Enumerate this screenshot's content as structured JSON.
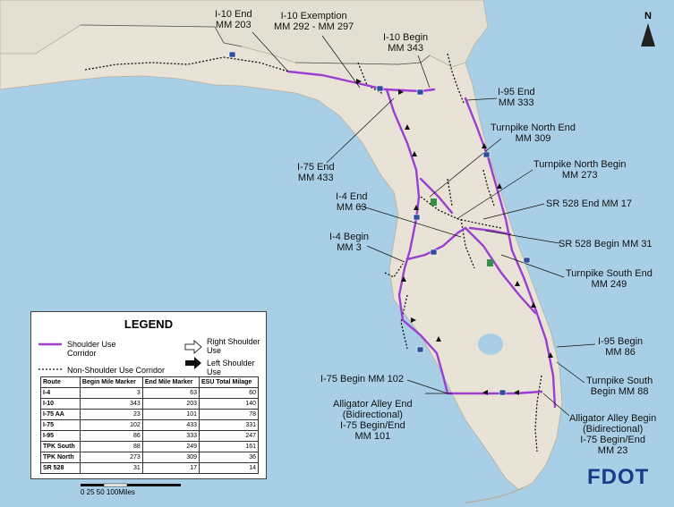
{
  "map": {
    "north_label": "N",
    "colors": {
      "water": "#a9cfe6",
      "land": "#e8e3d6",
      "land_edge": "#b7b1a0",
      "shoulder_route": "#9b3fd0",
      "non_shoulder": "#111111"
    },
    "labels": {
      "i10_end": [
        "I-10 End",
        "MM 203"
      ],
      "i10_exemption": [
        "I-10 Exemption",
        "MM 292 - MM 297"
      ],
      "i10_begin": [
        "I-10 Begin",
        "MM 343"
      ],
      "i95_end": [
        "I-95 End",
        "MM 333"
      ],
      "tpk_north_end": [
        "Turnpike North End",
        "MM 309"
      ],
      "tpk_north_begin": [
        "Turnpike North Begin",
        "MM 273"
      ],
      "i75_end": [
        "I-75 End",
        "MM 433"
      ],
      "i4_end": [
        "I-4 End",
        "MM 63"
      ],
      "sr528_end": [
        "SR 528 End MM 17"
      ],
      "i4_begin": [
        "I-4 Begin",
        "MM 3"
      ],
      "sr528_begin": [
        "SR 528 Begin MM 31"
      ],
      "tpk_south_end": [
        "Turnpike South End",
        "MM 249"
      ],
      "i95_begin": [
        "I-95 Begin",
        "MM 86"
      ],
      "i75_begin": [
        "I-75 Begin MM 102"
      ],
      "tpk_south_begin": [
        "Turnpike South",
        "Begin MM 88"
      ],
      "alligator_end": [
        "Alligator Alley End",
        "(Bidirectional)",
        "I-75 Begin/End",
        "MM 101"
      ],
      "alligator_begin": [
        "Alligator Alley Begin",
        "(Bidirectional)",
        "I-75 Begin/End",
        "MM 23"
      ]
    }
  },
  "legend": {
    "title": "LEGEND",
    "shoulder_use": "Shoulder Use Corridor",
    "non_shoulder": "Non-Shoulder Use Corridor",
    "right_shoulder": "Right Shoulder Use",
    "left_shoulder": "Left Shoulder Use",
    "columns": [
      "Route",
      "Begin Mile Marker",
      "End Mile Marker",
      "ESU Total Milage"
    ],
    "rows": [
      [
        "I-4",
        "3",
        "63",
        "60"
      ],
      [
        "I-10",
        "343",
        "203",
        "140"
      ],
      [
        "I-75 AA",
        "23",
        "101",
        "78"
      ],
      [
        "I-75",
        "102",
        "433",
        "331"
      ],
      [
        "I-95",
        "86",
        "333",
        "247"
      ],
      [
        "TPK South",
        "88",
        "249",
        "161"
      ],
      [
        "TPK North",
        "273",
        "309",
        "36"
      ],
      [
        "SR 528",
        "31",
        "17",
        "14"
      ]
    ]
  },
  "scale": "0   25   50          100Miles",
  "logo": "FDOT"
}
